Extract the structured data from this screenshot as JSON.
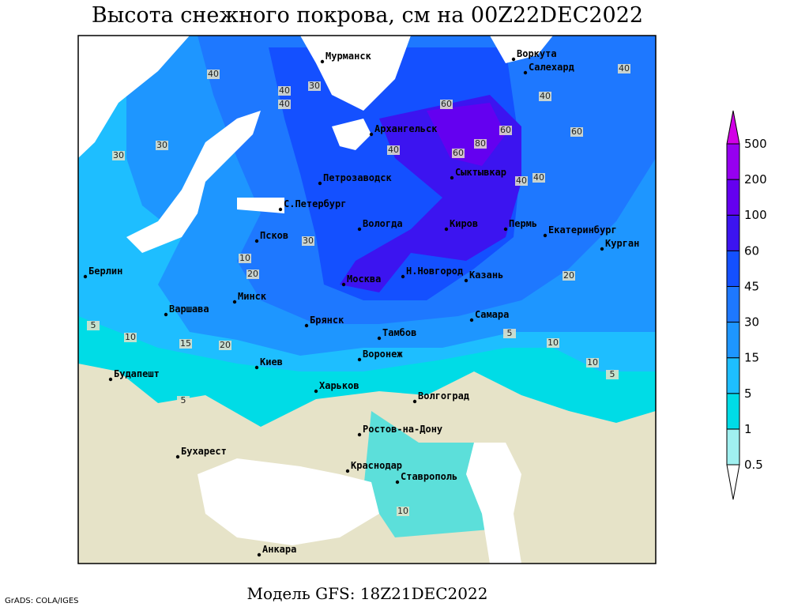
{
  "title": "Высота снежного покрова, см на 00Z22DEC2022",
  "subtitle": "Модель GFS: 18Z21DEC2022",
  "credit": "GrADS: COLA/IGES",
  "cities": [
    "Мурманск",
    "Воркута",
    "Салехард",
    "Архангельск",
    "Сыктывкар",
    "Петрозаводск",
    "С.Петербург",
    "Вологда",
    "Киров",
    "Пермь",
    "Екатеринбург",
    "Курган",
    "Псков",
    "Н.Новгород",
    "Москва",
    "Казань",
    "Берлин",
    "Варшава",
    "Минск",
    "Брянск",
    "Тамбов",
    "Самара",
    "Киев",
    "Воронеж",
    "Будапешт",
    "Харьков",
    "Волгоград",
    "Ростов-на-Дону",
    "Бухарест",
    "Краснодар",
    "Ставрополь",
    "Анкара"
  ],
  "contour_labels": [
    40,
    30,
    40,
    60,
    40,
    40,
    60,
    80,
    40,
    30,
    30,
    60,
    60,
    40,
    40,
    40,
    10,
    20,
    30,
    20,
    5,
    10,
    15,
    20,
    10,
    5,
    10,
    5,
    5,
    10
  ],
  "legend": {
    "levels": [
      0.5,
      1,
      5,
      15,
      30,
      45,
      60,
      100,
      200,
      500
    ],
    "colors": [
      "#ffffff",
      "#a0f0f0",
      "#00dce6",
      "#1ebeff",
      "#1e96ff",
      "#1e78ff",
      "#1450ff",
      "#3c14f0",
      "#6400f0",
      "#9600f0",
      "#d200e6"
    ]
  }
}
